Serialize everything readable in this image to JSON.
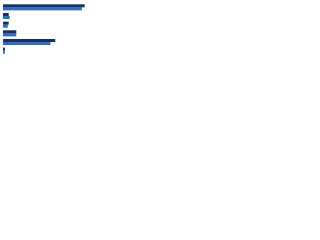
{
  "chart_data": {
    "type": "hbar",
    "categories": [
      null,
      null,
      null,
      null,
      null,
      null
    ],
    "series": [
      {
        "color": "#1c2f5c",
        "values": [
          86,
          6,
          6,
          14,
          55,
          2
        ]
      },
      {
        "color": "#2f6cc4",
        "values": [
          83,
          7,
          5,
          14,
          50,
          2
        ]
      }
    ],
    "xlim": [
      0,
      100
    ]
  }
}
